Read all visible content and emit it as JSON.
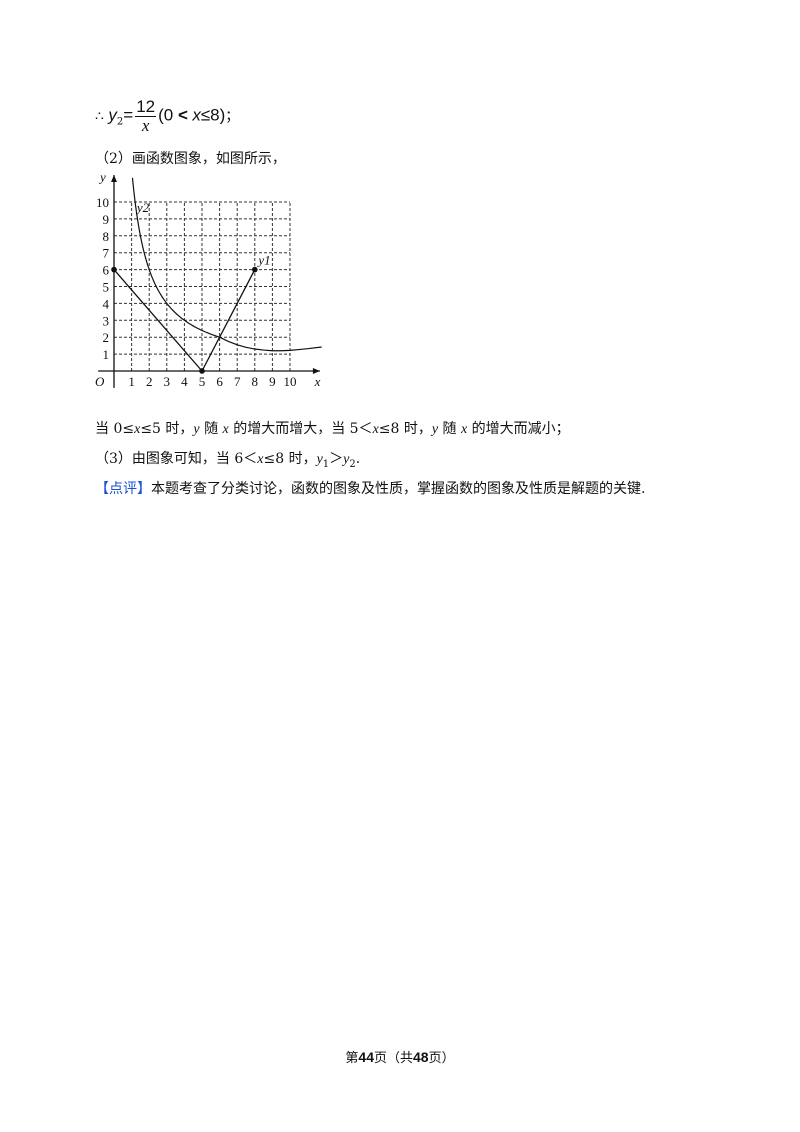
{
  "line1": {
    "prefix": "∴",
    "var": "y",
    "sub": "2",
    "eq": "=",
    "num": "12",
    "den": "x",
    "cond_open": "(0 ",
    "lt": "<",
    "cond_x": "x",
    "cond_rest": "≤8)",
    "end": "；"
  },
  "line2": "（2）画函数图象，如图所示，",
  "figure": {
    "x_axis_label": "x",
    "y_axis_label": "y",
    "origin_label": "O",
    "x_ticks": [
      "1",
      "2",
      "3",
      "4",
      "5",
      "6",
      "7",
      "8",
      "9",
      "10"
    ],
    "y_ticks": [
      "1",
      "2",
      "3",
      "4",
      "5",
      "6",
      "7",
      "8",
      "9",
      "10"
    ],
    "curve_labels": {
      "y1": "y1",
      "y2": "y2"
    },
    "y1_points": [
      [
        0,
        6
      ],
      [
        5,
        0
      ],
      [
        8,
        6
      ]
    ],
    "y2_function": "12/x"
  },
  "line3": {
    "a": "当 0≤",
    "x1": "x",
    "b": "≤5 时，",
    "y1": "y",
    "c": " 随 ",
    "x2": "x",
    "d": " 的增大而增大，当 5＜",
    "x3": "x",
    "e": "≤8 时，",
    "y2": "y",
    "f": " 随 ",
    "x4": "x",
    "g": " 的增大而减小；"
  },
  "line4": {
    "a": "（3）由图象可知，当 6＜",
    "x": "x",
    "b": "≤8 时，",
    "y1": "y",
    "s1": "1",
    "gt": "＞",
    "y2": "y",
    "s2": "2",
    "end": "."
  },
  "line5": {
    "tag": "【点评】",
    "text": "本题考查了分类讨论，函数的图象及性质，掌握函数的图象及性质是解题的关键."
  },
  "footer": {
    "a": "第",
    "page": "44",
    "b": "页（共",
    "total": "48",
    "c": "页）"
  }
}
